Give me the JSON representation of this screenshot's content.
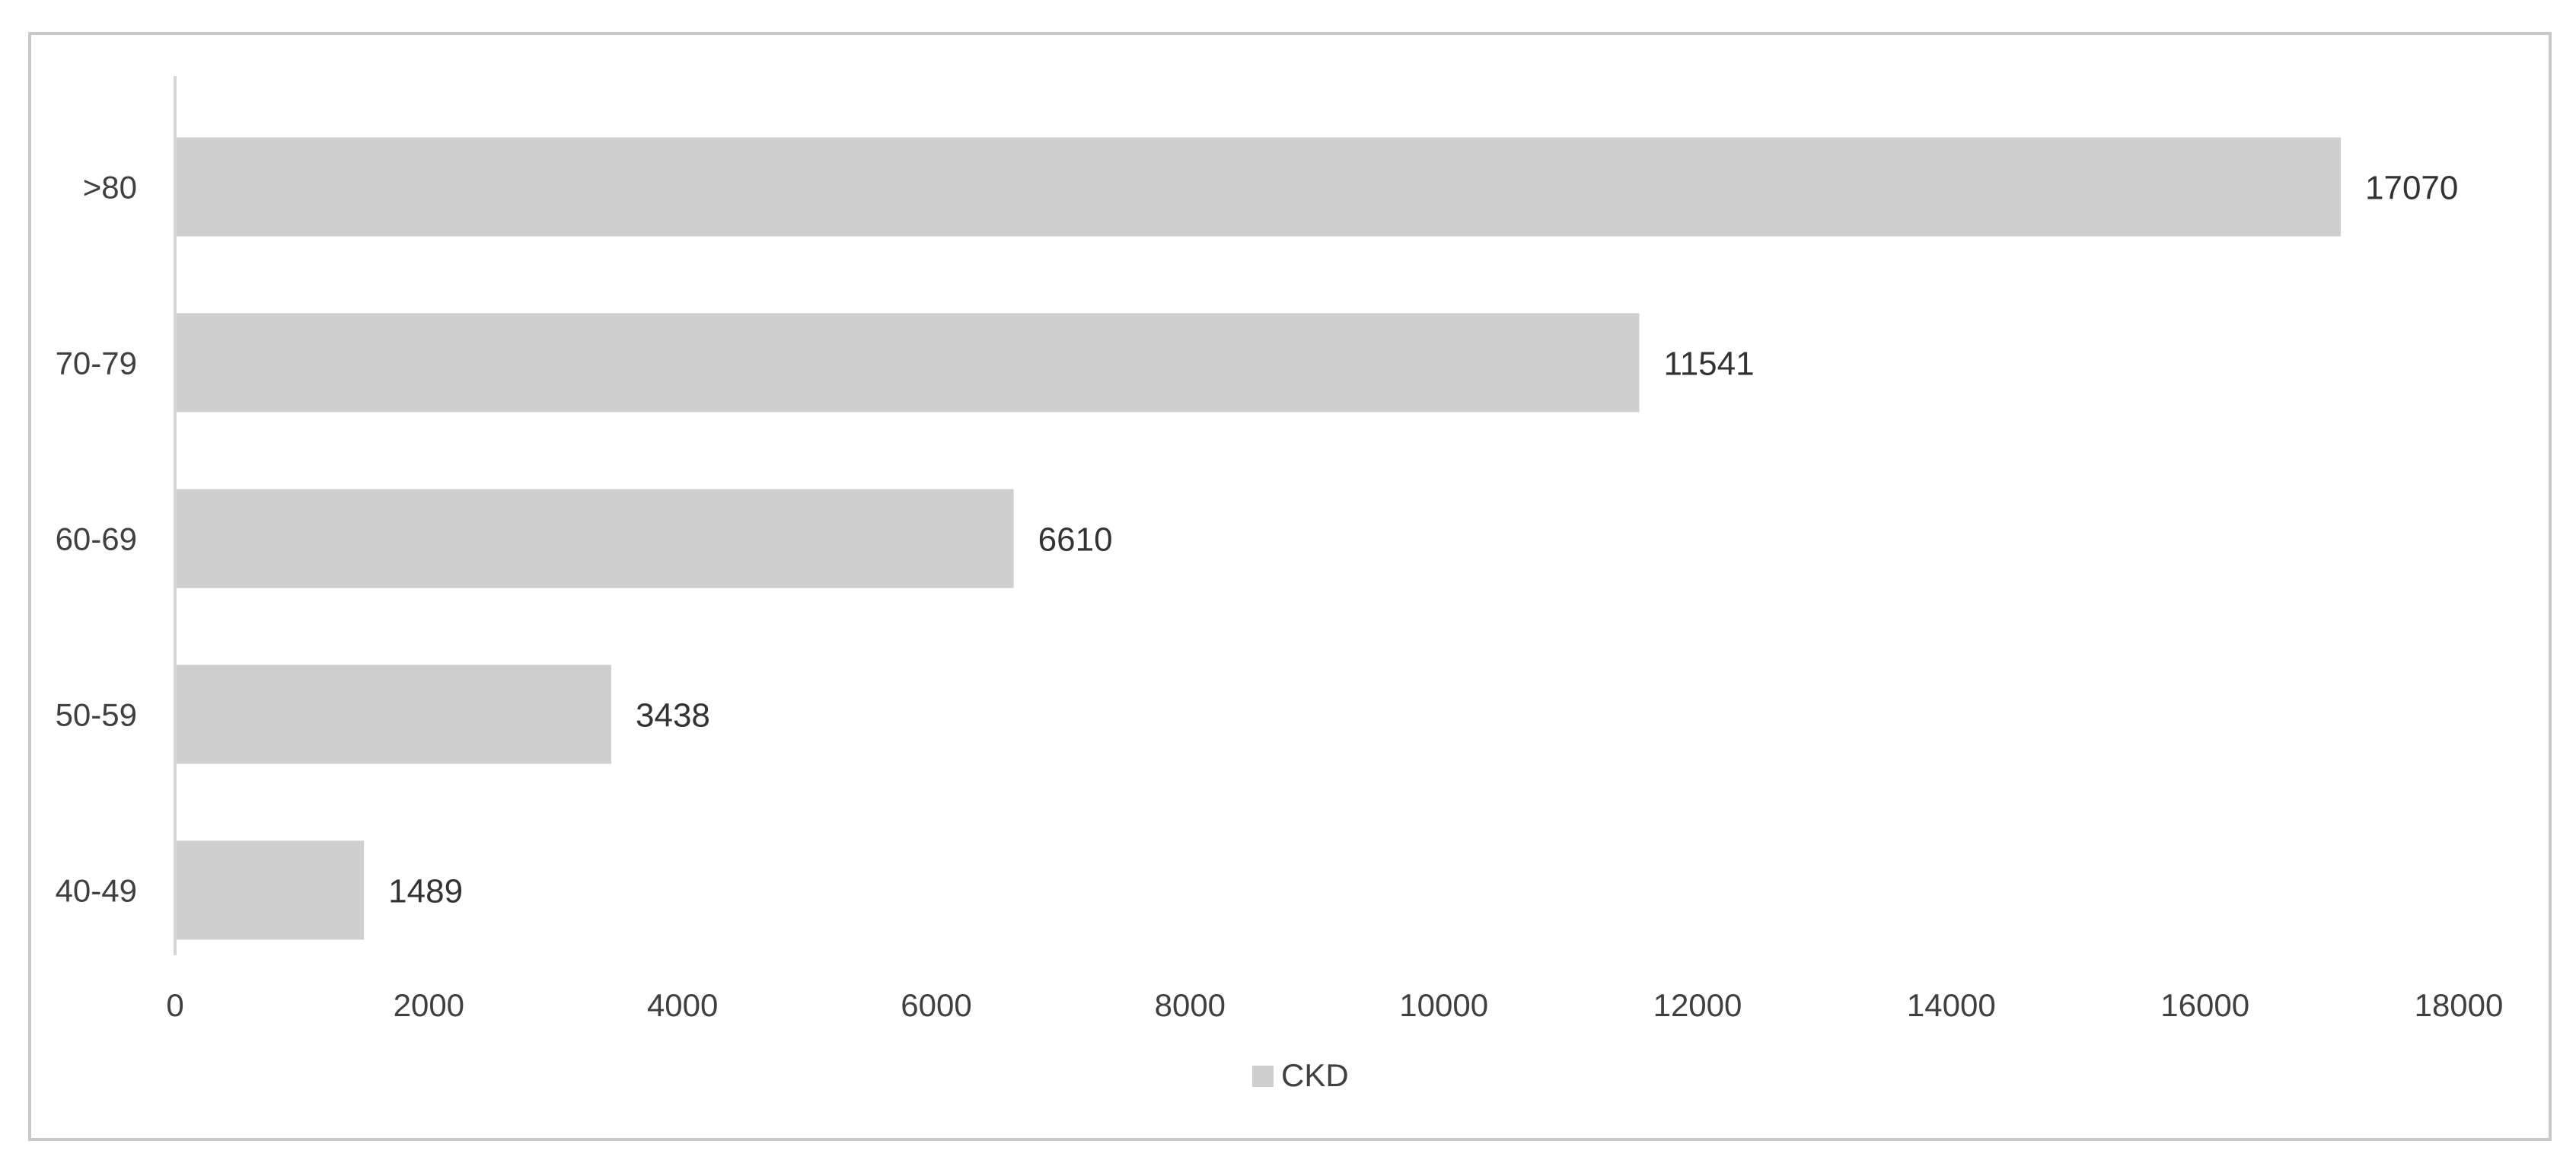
{
  "chart_data": {
    "type": "bar",
    "orientation": "horizontal",
    "categories": [
      "40-49",
      "50-59",
      "60-69",
      "70-79",
      ">80"
    ],
    "series": [
      {
        "name": "CKD",
        "values": [
          1489,
          3438,
          6610,
          11541,
          17070
        ],
        "color": "#d0cfcf"
      }
    ],
    "data_labels": [
      "1489",
      "3438",
      "6610",
      "11541",
      "17070"
    ],
    "x_ticks": [
      0,
      2000,
      4000,
      6000,
      8000,
      10000,
      12000,
      14000,
      16000,
      18000
    ],
    "xlim": [
      0,
      18000
    ],
    "title": "",
    "xlabel": "",
    "ylabel": "",
    "grid": false,
    "legend": {
      "position": "bottom",
      "entries": [
        "CKD"
      ]
    },
    "colors": {
      "bar": "#d0cfcf",
      "axis": "#d6d6d6",
      "frame": "#c8c8c8",
      "text": "#404040"
    }
  }
}
